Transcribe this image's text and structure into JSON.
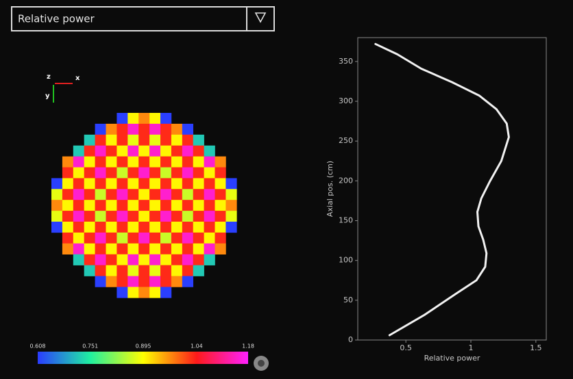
{
  "dropdown": {
    "label": "Relative power"
  },
  "axes_triad": {
    "labels": [
      "z",
      "x",
      "y"
    ]
  },
  "core_map": {
    "values": [
      [
        null,
        null,
        null,
        null,
        null,
        null,
        0.61,
        0.9,
        0.97,
        0.9,
        0.61,
        null,
        null,
        null,
        null,
        null,
        null
      ],
      [
        null,
        null,
        null,
        null,
        0.61,
        0.97,
        1.03,
        1.15,
        1.03,
        1.15,
        1.03,
        0.97,
        0.61,
        null,
        null,
        null,
        null
      ],
      [
        null,
        null,
        null,
        0.72,
        1.03,
        0.9,
        1.03,
        0.88,
        1.03,
        0.88,
        1.03,
        0.9,
        1.03,
        0.72,
        null,
        null,
        null
      ],
      [
        null,
        null,
        0.72,
        1.03,
        1.15,
        1.03,
        0.9,
        1.15,
        0.9,
        1.15,
        0.9,
        1.03,
        1.15,
        1.03,
        0.72,
        null,
        null
      ],
      [
        null,
        0.97,
        1.15,
        0.9,
        1.03,
        0.9,
        1.03,
        0.9,
        1.03,
        0.9,
        1.03,
        0.9,
        1.03,
        0.9,
        1.15,
        0.97,
        null
      ],
      [
        null,
        1.03,
        0.9,
        1.03,
        1.15,
        1.03,
        0.86,
        1.03,
        1.15,
        1.03,
        0.86,
        1.03,
        1.15,
        1.03,
        0.9,
        1.03,
        null
      ],
      [
        0.61,
        0.9,
        1.03,
        0.9,
        1.03,
        0.9,
        1.03,
        0.9,
        1.03,
        0.9,
        1.03,
        0.9,
        1.03,
        0.9,
        1.03,
        0.9,
        0.61
      ],
      [
        0.88,
        1.03,
        1.15,
        1.03,
        0.86,
        1.03,
        1.15,
        1.03,
        0.9,
        1.03,
        1.15,
        1.03,
        0.86,
        1.03,
        1.15,
        1.03,
        0.88
      ],
      [
        0.97,
        0.9,
        1.03,
        0.9,
        1.03,
        0.9,
        1.03,
        0.9,
        1.03,
        0.9,
        1.03,
        0.9,
        1.03,
        0.9,
        1.03,
        0.9,
        0.97
      ],
      [
        0.88,
        1.03,
        1.15,
        1.03,
        0.86,
        1.03,
        1.15,
        1.03,
        0.9,
        1.03,
        1.15,
        1.03,
        0.86,
        1.03,
        1.15,
        1.03,
        0.88
      ],
      [
        0.61,
        0.9,
        1.03,
        0.9,
        1.03,
        0.9,
        1.03,
        0.9,
        1.03,
        0.9,
        1.03,
        0.9,
        1.03,
        0.9,
        1.03,
        0.9,
        0.61
      ],
      [
        null,
        1.03,
        0.9,
        1.03,
        1.15,
        1.03,
        0.86,
        1.03,
        1.15,
        1.03,
        0.86,
        1.03,
        1.15,
        1.03,
        0.9,
        1.03,
        null
      ],
      [
        null,
        0.97,
        1.15,
        0.9,
        1.03,
        0.9,
        1.03,
        0.9,
        1.03,
        0.9,
        1.03,
        0.9,
        1.03,
        0.9,
        1.15,
        0.97,
        null
      ],
      [
        null,
        null,
        0.72,
        1.03,
        1.15,
        1.03,
        0.9,
        1.15,
        0.9,
        1.15,
        0.9,
        1.03,
        1.15,
        1.03,
        0.72,
        null,
        null
      ],
      [
        null,
        null,
        null,
        0.72,
        1.03,
        0.9,
        1.03,
        0.88,
        1.03,
        0.88,
        1.03,
        0.9,
        1.03,
        0.72,
        null,
        null,
        null
      ],
      [
        null,
        null,
        null,
        null,
        0.61,
        0.97,
        1.03,
        1.15,
        1.03,
        1.15,
        1.03,
        0.97,
        0.61,
        null,
        null,
        null,
        null
      ],
      [
        null,
        null,
        null,
        null,
        null,
        null,
        0.61,
        0.9,
        0.97,
        0.9,
        0.61,
        null,
        null,
        null,
        null,
        null,
        null
      ]
    ],
    "colorbar": {
      "ticks": [
        0.608,
        0.751,
        0.895,
        1.04,
        1.18
      ],
      "colors": [
        "#2a3cff",
        "#20f0a0",
        "#ffff00",
        "#ff1a1a",
        "#ff20ff"
      ]
    }
  },
  "chart_data": {
    "type": "line",
    "xlabel": "Relative power",
    "ylabel": "Axial pos. (cm)",
    "x": [
      0.374,
      0.647,
      0.884,
      1.042,
      1.11,
      1.12,
      1.095,
      1.058,
      1.05,
      1.08,
      1.145,
      1.234,
      1.292,
      1.276,
      1.197,
      1.066,
      0.855,
      0.618,
      0.434,
      0.266
    ],
    "values": [
      6,
      32,
      58,
      75,
      92,
      109,
      126,
      143,
      161,
      178,
      199,
      225,
      255,
      272,
      290,
      307,
      324,
      341,
      359,
      372
    ],
    "color": "#f2f2f2",
    "xlim": [
      0.13,
      1.58
    ],
    "ylim": [
      0,
      380
    ],
    "xticks": [
      0.5,
      1.0,
      1.5
    ],
    "yticks": [
      0,
      50,
      100,
      150,
      200,
      250,
      300,
      350
    ]
  }
}
